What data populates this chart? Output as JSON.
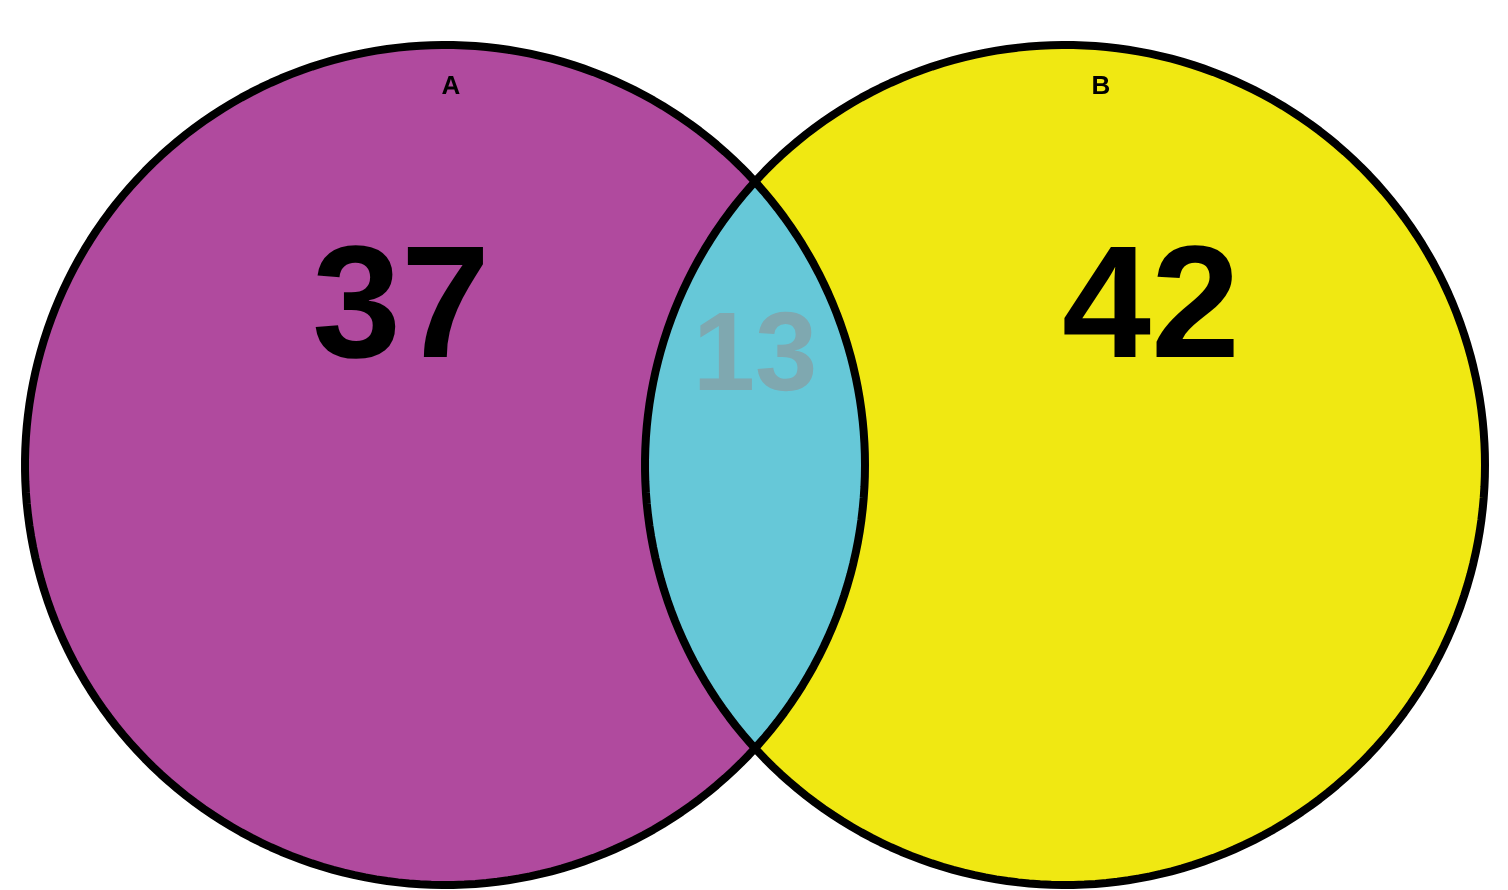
{
  "chart_data": {
    "type": "other",
    "categories": [
      "A",
      "B",
      null
    ],
    "values": [
      37,
      42,
      13
    ],
    "colors": [
      "#b04a9e",
      "#f0e812",
      "#66c8d8"
    ],
    "data_labels": true
  }
}
